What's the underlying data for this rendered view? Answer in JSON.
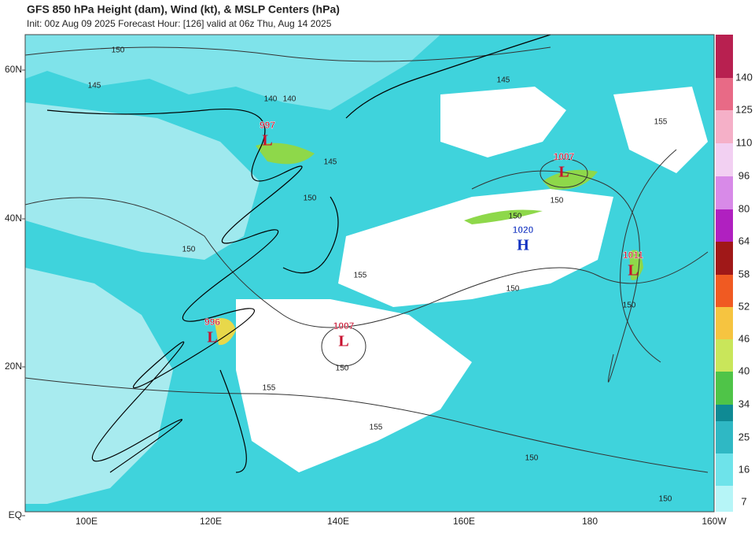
{
  "header": {
    "title": "GFS 850 hPa Height (dam), Wind (kt), & MSLP Centers (hPa)",
    "subtitle": "Init: 00z Aug 09 2025   Forecast Hour: [126]   valid at 06z Thu, Aug 14 2025"
  },
  "axes": {
    "lat_labels": [
      "60N",
      "40N",
      "20N",
      "EQ"
    ],
    "lon_labels": [
      "100E",
      "120E",
      "140E",
      "160E",
      "180",
      "160W"
    ]
  },
  "colorbar": {
    "labels": [
      "7",
      "16",
      "25",
      "34",
      "40",
      "46",
      "52",
      "58",
      "64",
      "80",
      "96",
      "110",
      "125",
      "140"
    ]
  },
  "pressure_centers": [
    {
      "value": "997",
      "type": "L"
    },
    {
      "value": "996",
      "type": "L"
    },
    {
      "value": "1007",
      "type": "L"
    },
    {
      "value": "1007",
      "type": "L"
    },
    {
      "value": "1020",
      "type": "H"
    },
    {
      "value": "1011",
      "type": "L"
    }
  ],
  "contour_labels": [
    "150",
    "145",
    "140",
    "140",
    "145",
    "150",
    "145",
    "155",
    "150",
    "150",
    "150",
    "155",
    "155",
    "155",
    "150",
    "150",
    "150",
    "150",
    "150"
  ]
}
